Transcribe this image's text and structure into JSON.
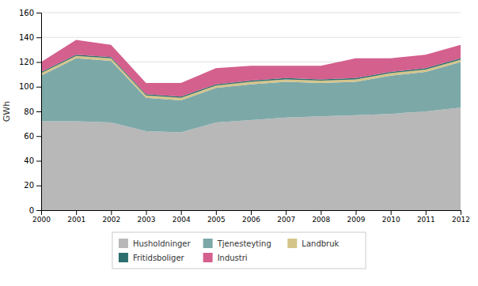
{
  "chart_data": {
    "type": "area",
    "stacked": true,
    "x": [
      2000,
      2001,
      2002,
      2003,
      2004,
      2005,
      2006,
      2007,
      2008,
      2009,
      2010,
      2011,
      2012
    ],
    "series": [
      {
        "name": "Husholdninger",
        "color": "#b8b8b8",
        "values": [
          72,
          72,
          71,
          64,
          63,
          71,
          73,
          75,
          76,
          77,
          78,
          80,
          83
        ]
      },
      {
        "name": "Tjenesteyting",
        "color": "#7da8a8",
        "values": [
          37,
          51,
          50,
          27,
          26,
          28,
          29,
          29,
          27,
          27,
          31,
          32,
          37
        ]
      },
      {
        "name": "Landbruk",
        "color": "#d4c48a",
        "values": [
          2,
          2,
          2,
          2,
          2,
          2,
          2,
          2,
          2,
          2,
          2,
          2,
          2
        ]
      },
      {
        "name": "Fritidsboliger",
        "color": "#2d6e6e",
        "values": [
          1,
          1,
          1,
          1,
          1,
          1,
          1,
          1,
          1,
          1,
          1,
          1,
          1
        ]
      },
      {
        "name": "Industri",
        "color": "#d4608e",
        "values": [
          8,
          12,
          10,
          9,
          11,
          13,
          12,
          10,
          11,
          16,
          11,
          11,
          11
        ]
      }
    ],
    "ylabel": "GWh",
    "xlim": [
      2000,
      2012
    ],
    "xticks": [
      2000,
      2001,
      2002,
      2003,
      2004,
      2005,
      2006,
      2007,
      2008,
      2009,
      2010,
      2011,
      2012
    ],
    "ylim": [
      0,
      160
    ],
    "yticks": [
      0,
      20,
      40,
      60,
      80,
      100,
      120,
      140,
      160
    ],
    "grid": true,
    "legend": "bottom"
  }
}
